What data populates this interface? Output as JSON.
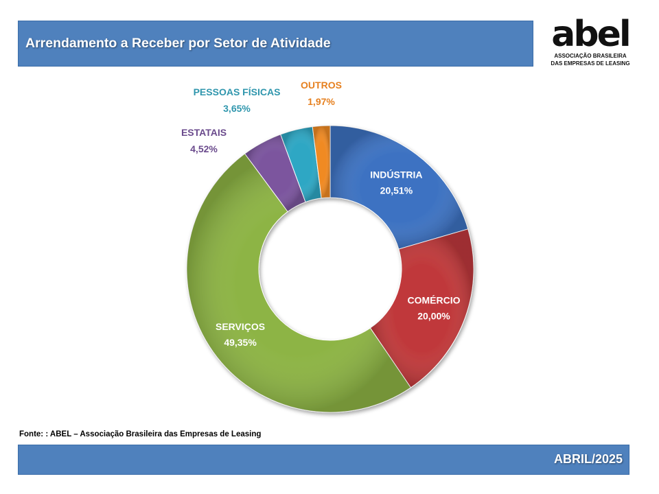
{
  "header": {
    "title": "Arrendamento a Receber por Setor de Atividade"
  },
  "logo": {
    "word": "abel",
    "line1": "ASSOCIAÇÃO BRASILEIRA",
    "line2": "DAS EMPRESAS DE LEASING"
  },
  "chart_data": {
    "type": "pie",
    "variant": "doughnut",
    "title": "Arrendamento a Receber por Setor de Atividade",
    "series": [
      {
        "name": "INDÚSTRIA",
        "value": 20.51,
        "label": "20,51%",
        "color": "#3d72c2",
        "label_color": "#ffffff"
      },
      {
        "name": "COMÉRCIO",
        "value": 20.0,
        "label": "20,00%",
        "color": "#c0393b",
        "label_color": "#ffffff"
      },
      {
        "name": "SERVIÇOS",
        "value": 49.35,
        "label": "49,35%",
        "color": "#8db444",
        "label_color": "#ffffff"
      },
      {
        "name": "ESTATAIS",
        "value": 4.52,
        "label": "4,52%",
        "color": "#7b559e",
        "label_color": "#6a4a8c"
      },
      {
        "name": "PESSOAS FÍSICAS",
        "value": 3.65,
        "label": "3,65%",
        "color": "#2ea7c4",
        "label_color": "#2f96ad"
      },
      {
        "name": "OUTROS",
        "value": 1.97,
        "label": "1,97%",
        "color": "#f08a24",
        "label_color": "#e6801f"
      }
    ],
    "legend": "none",
    "label_placement": "large slices labeled inside, small slices labeled outside above"
  },
  "source": "Fonte: : ABEL – Associação Brasileira das Empresas de Leasing",
  "footer": {
    "date": "ABRIL/2025"
  }
}
